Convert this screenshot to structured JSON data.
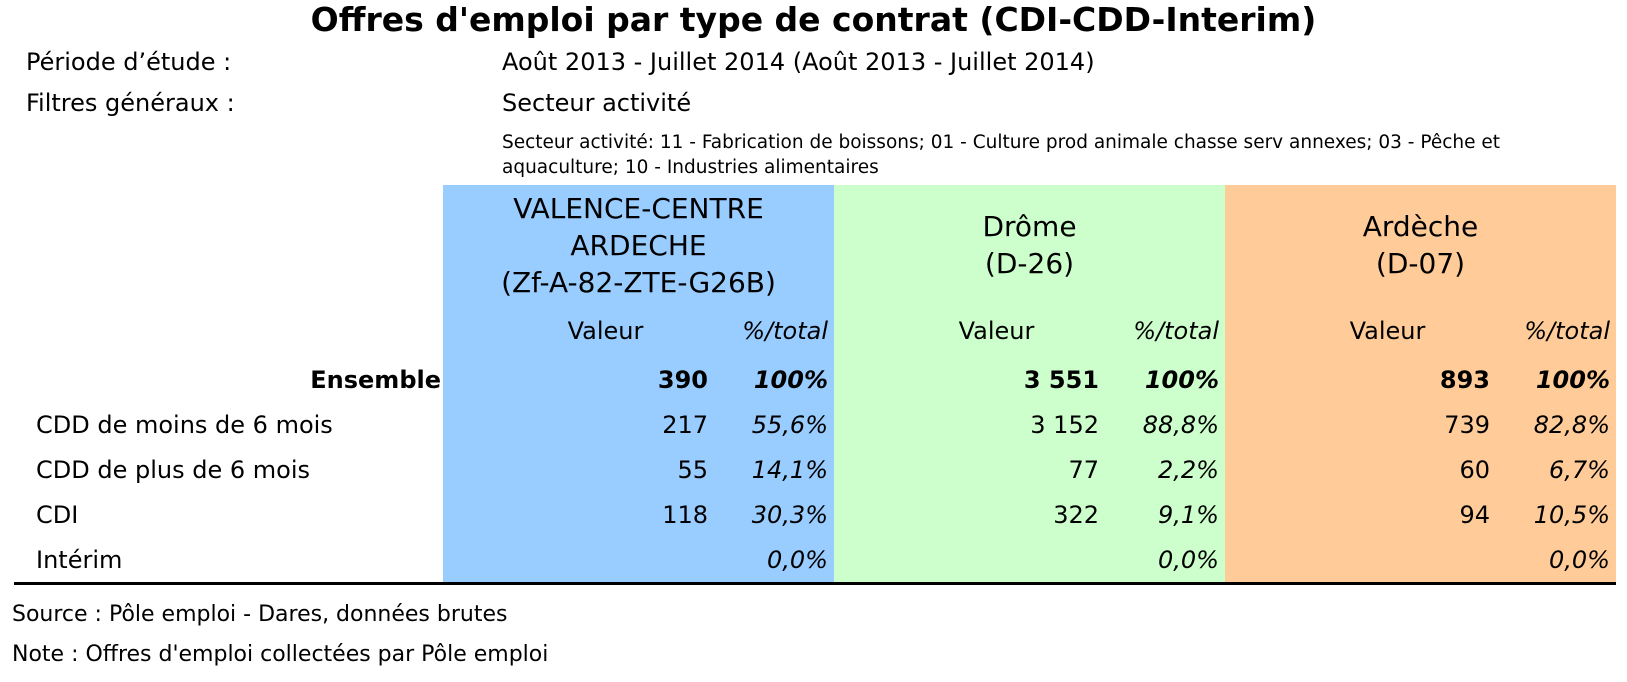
{
  "title": "Offres d'emploi par type de contrat (CDI-CDD-Interim)",
  "meta": {
    "periode_label": "Période d’étude :",
    "periode_value": "Août 2013 - Juillet 2014 (Août 2013 - Juillet 2014)",
    "filtres_label": "Filtres généraux :",
    "filtres_value": "Secteur activité",
    "filtres_detail": "Secteur activité: 11 - Fabrication de boissons; 01 - Culture prod animale chasse serv annexes; 03 - Pêche et aquaculture; 10 - Industries alimentaires"
  },
  "regions": [
    {
      "name": "VALENCE-CENTRE ARDECHE (Zf-A-82-ZTE-G26B)",
      "color": "#99ccff"
    },
    {
      "name": "Drôme (D-26)",
      "color": "#ccffcc"
    },
    {
      "name": "Ardèche (D-07)",
      "color": "#ffcc99"
    }
  ],
  "subheaders": {
    "valeur": "Valeur",
    "pct": "%/total"
  },
  "total_row": {
    "label": "Ensemble",
    "cells": [
      [
        "390",
        "100%"
      ],
      [
        "3 551",
        "100%"
      ],
      [
        "893",
        "100%"
      ]
    ]
  },
  "rows": [
    {
      "label": "CDD de moins de 6 mois",
      "cells": [
        [
          "217",
          "55,6%"
        ],
        [
          "3 152",
          "88,8%"
        ],
        [
          "739",
          "82,8%"
        ]
      ]
    },
    {
      "label": "CDD de plus de 6 mois",
      "cells": [
        [
          "55",
          "14,1%"
        ],
        [
          "77",
          "2,2%"
        ],
        [
          "60",
          "6,7%"
        ]
      ]
    },
    {
      "label": "CDI",
      "cells": [
        [
          "118",
          "30,3%"
        ],
        [
          "322",
          "9,1%"
        ],
        [
          "94",
          "10,5%"
        ]
      ]
    },
    {
      "label": "Intérim",
      "cells": [
        [
          "",
          "0,0%"
        ],
        [
          "",
          "0,0%"
        ],
        [
          "",
          "0,0%"
        ]
      ]
    }
  ],
  "footer": {
    "source": "Source : Pôle emploi - Dares, données brutes",
    "note": "Note : Offres d'emploi collectées par Pôle emploi"
  }
}
